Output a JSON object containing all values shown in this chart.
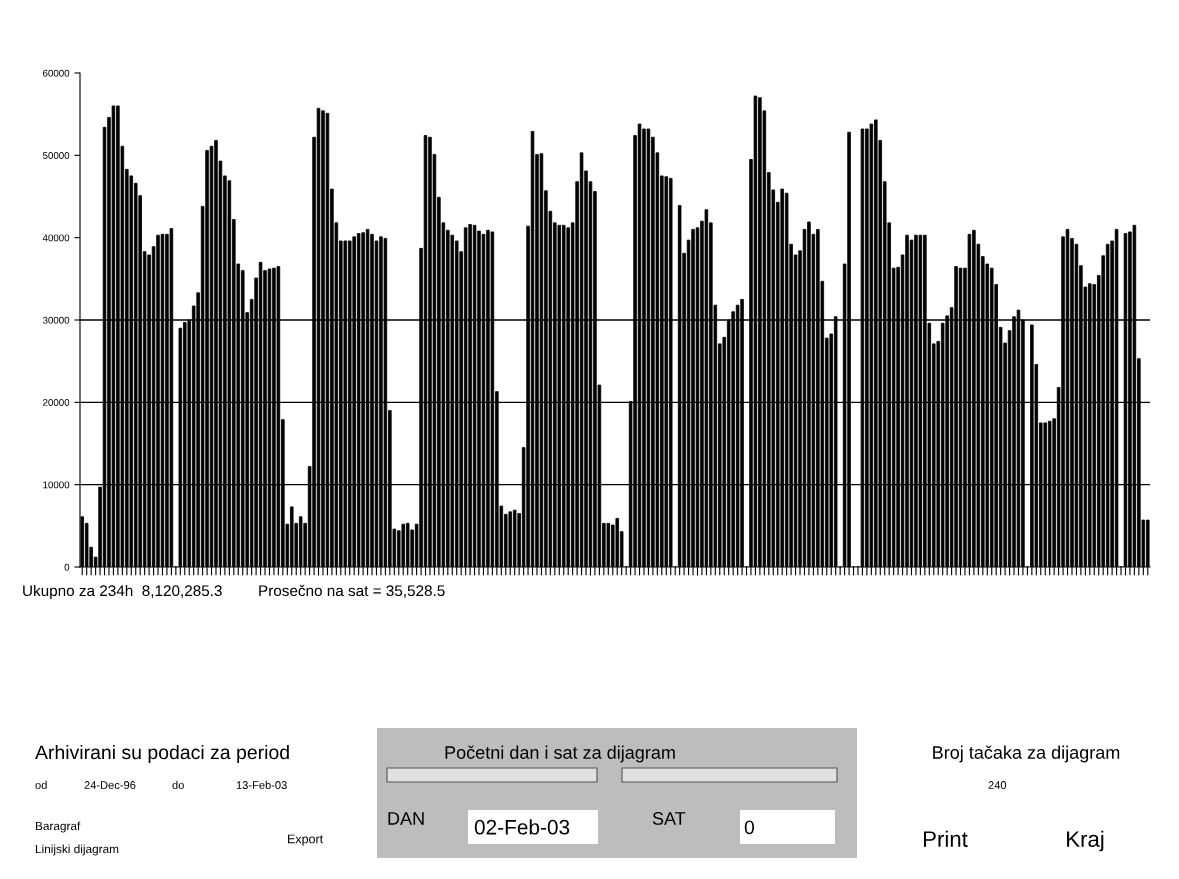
{
  "chart_data": {
    "type": "bar",
    "categories": [
      null,
      null,
      null,
      null,
      null,
      null,
      null,
      null,
      null,
      null,
      null,
      null,
      null,
      null,
      null,
      null,
      null,
      null,
      null,
      null,
      null,
      null,
      null,
      null,
      null,
      null,
      null,
      null,
      null,
      null,
      null,
      null,
      null,
      null,
      null,
      null,
      null,
      null,
      null,
      null,
      null,
      null,
      null,
      null,
      null,
      null,
      null,
      null,
      null,
      null,
      null,
      null,
      null,
      null,
      null,
      null,
      null,
      null,
      null,
      null,
      null,
      null,
      null,
      null,
      null,
      null,
      null,
      null,
      null,
      null,
      null,
      null,
      null,
      null,
      null,
      null,
      null,
      null,
      null,
      null,
      null,
      null,
      null,
      null,
      null,
      null,
      null,
      null,
      null,
      null,
      null,
      null,
      null,
      null,
      null,
      null,
      null,
      null,
      null,
      null,
      null,
      null,
      null,
      null,
      null,
      null,
      null,
      null,
      null,
      null,
      null,
      null,
      null,
      null,
      null,
      null,
      null,
      null,
      null,
      null,
      null,
      null,
      null,
      null,
      null,
      null,
      null,
      null,
      null,
      null,
      null,
      null,
      null,
      null,
      null,
      null,
      null,
      null,
      null,
      null,
      null,
      null,
      null,
      null,
      null,
      null,
      null,
      null,
      null,
      null,
      null,
      null,
      null,
      null,
      null,
      null,
      null,
      null,
      null,
      null,
      null,
      null,
      null,
      null,
      null,
      null,
      null,
      null,
      null,
      null,
      null,
      null,
      null,
      null,
      null,
      null,
      null,
      null,
      null,
      null,
      null,
      null,
      null,
      null,
      null,
      null,
      null,
      null,
      null,
      null,
      null,
      null,
      null,
      null,
      null,
      null,
      null,
      null,
      null,
      null,
      null,
      null,
      null,
      null,
      null,
      null,
      null,
      null,
      null,
      null,
      null,
      null,
      null,
      null,
      null,
      null,
      null,
      null,
      null,
      null,
      null,
      null,
      null,
      null,
      null,
      null,
      null,
      null,
      null,
      null,
      null,
      null,
      null,
      null,
      null,
      null,
      null,
      null,
      null,
      null
    ],
    "values": [
      6100,
      5300,
      2400,
      1200,
      9700,
      53400,
      54600,
      56000,
      56000,
      51100,
      48300,
      47500,
      46600,
      45100,
      38300,
      37900,
      38900,
      40300,
      40400,
      40400,
      41100,
      0,
      29000,
      29700,
      30000,
      31700,
      33300,
      43800,
      50600,
      51100,
      51800,
      49300,
      47500,
      46900,
      42200,
      36800,
      36000,
      30900,
      32500,
      35100,
      37000,
      36000,
      36200,
      36300,
      36500,
      17900,
      5200,
      7300,
      5300,
      6100,
      5300,
      12200,
      52200,
      55700,
      55400,
      55100,
      45900,
      41800,
      39600,
      39600,
      39600,
      40100,
      40500,
      40600,
      41000,
      40400,
      39600,
      40100,
      39900,
      19000,
      4600,
      4400,
      5200,
      5300,
      4500,
      5200,
      38700,
      52400,
      52200,
      50100,
      44900,
      41800,
      40900,
      40300,
      39600,
      38300,
      41200,
      41600,
      41500,
      40800,
      40400,
      40900,
      40700,
      21300,
      7400,
      6400,
      6700,
      6900,
      6500,
      14500,
      41400,
      52900,
      50100,
      50200,
      45700,
      43200,
      41800,
      41500,
      41500,
      41200,
      41800,
      46800,
      50300,
      48100,
      46800,
      45600,
      22100,
      5300,
      5300,
      5100,
      5900,
      4300,
      0,
      20100,
      52400,
      53800,
      53200,
      53200,
      52200,
      50300,
      47500,
      47400,
      47200,
      0,
      43900,
      38100,
      39700,
      41000,
      41200,
      42000,
      43400,
      41800,
      31800,
      27100,
      27900,
      30000,
      31000,
      31800,
      32500,
      0,
      49500,
      57200,
      57000,
      55400,
      47900,
      45800,
      44300,
      45900,
      45400,
      39200,
      37900,
      38400,
      41000,
      41900,
      40400,
      41000,
      34700,
      27800,
      28300,
      30400,
      0,
      36800,
      52800,
      0,
      0,
      53200,
      53200,
      53800,
      54300,
      51800,
      46800,
      41800,
      36300,
      36400,
      37900,
      40300,
      39700,
      40300,
      40300,
      40300,
      29600,
      27100,
      27400,
      29600,
      30500,
      31500,
      36500,
      36300,
      36300,
      40400,
      40900,
      39200,
      37700,
      36800,
      36300,
      34300,
      29100,
      27200,
      28700,
      30400,
      31200,
      30000,
      0,
      29400,
      24600,
      17500,
      17500,
      17700,
      18000,
      21800,
      40100,
      41000,
      39900,
      39200,
      36600,
      34000,
      34400,
      34300,
      35400,
      37800,
      39200,
      39600,
      41000,
      0,
      40500,
      40700,
      41500,
      25300,
      5700,
      5700
    ],
    "color": "#000000",
    "ylim": [
      0,
      60000
    ],
    "yticks": [
      0,
      10000,
      20000,
      30000,
      40000,
      50000,
      60000
    ],
    "tick_labels": "y",
    "grid": false,
    "ref_lines": [
      {
        "axis": "y",
        "value": 10000,
        "color": "#000000"
      },
      {
        "axis": "y",
        "value": 20000,
        "color": "#000000"
      },
      {
        "axis": "y",
        "value": 30000,
        "color": "#000000"
      }
    ],
    "annotations": [
      "Ukupno za 234h  8,120,285.3",
      "Prosečno na sat = 35,528.5",
      "Arhivirani su podaci za period",
      "od",
      "24-Dec-96",
      "do",
      "13-Feb-03",
      "Baragraf",
      "Linijski dijagram",
      "Export",
      "Početni dan i sat za dijagram",
      "DAN",
      "02-Feb-03",
      "SAT",
      "0",
      "Broj tačaka za dijagram",
      "240",
      "Print",
      "Kraj"
    ]
  }
}
